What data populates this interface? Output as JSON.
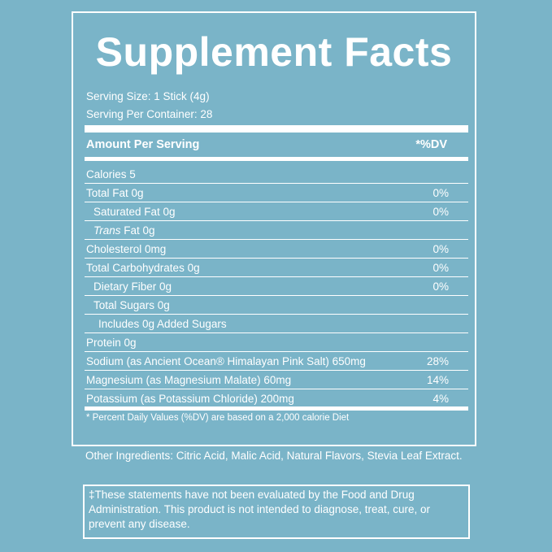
{
  "title": "Supplement Facts",
  "serving_size": "Serving Size: 1 Stick (4g)",
  "servings_per_container": "Serving Per Container: 28",
  "amount_per_serving": "Amount Per Serving",
  "dv_header": "*%DV",
  "rows": [
    {
      "name": "Calories 5",
      "dv": ""
    },
    {
      "name": "Total Fat 0g",
      "dv": "0%"
    },
    {
      "name": "Saturated Fat 0g",
      "dv": "0%"
    },
    {
      "name_italic": "Trans",
      "name_rest": " Fat 0g",
      "dv": ""
    },
    {
      "name": "Cholesterol 0mg",
      "dv": "0%"
    },
    {
      "name": "Total Carbohydrates 0g",
      "dv": "0%"
    },
    {
      "name": "Dietary Fiber 0g",
      "dv": "0%"
    },
    {
      "name": "Total Sugars 0g",
      "dv": ""
    },
    {
      "name": "Includes 0g Added Sugars",
      "dv": ""
    },
    {
      "name": "Protein 0g",
      "dv": ""
    },
    {
      "name": "Sodium (as Ancient Ocean® Himalayan Pink Salt) 650mg",
      "dv": "28%"
    },
    {
      "name": "Magnesium (as Magnesium Malate) 60mg",
      "dv": "14%"
    },
    {
      "name": "Potassium (as Potassium Chloride) 200mg",
      "dv": "4%"
    }
  ],
  "footnote": "* Percent Daily Values (%DV) are based on a 2,000 calorie Diet",
  "other_ingredients": "Other Ingredients: Citric Acid, Malic Acid, Natural Flavors, Stevia Leaf Extract.",
  "disclaimer": "‡These statements have not been evaluated by the Food and Drug Administration. This product is not intended to diagnose, treat, cure, or prevent any disease.",
  "colors": {
    "background": "#7ab4c8",
    "text": "#ffffff"
  }
}
